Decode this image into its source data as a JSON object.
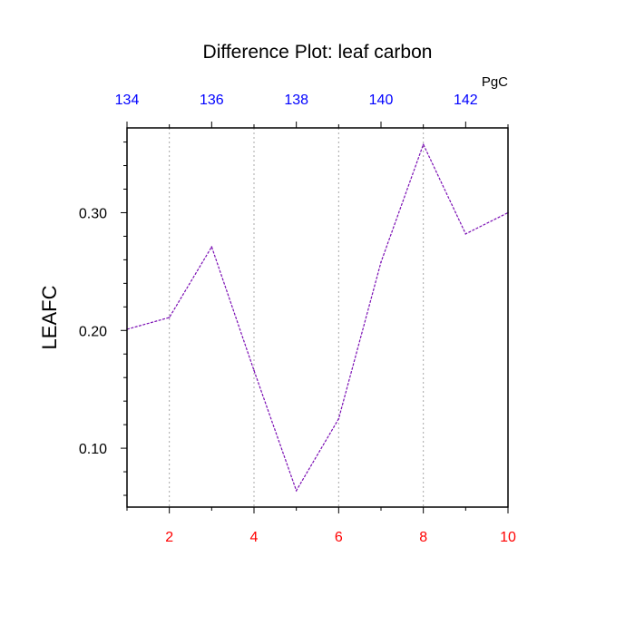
{
  "chart_data": {
    "type": "line",
    "title": "Difference Plot: leaf carbon",
    "ylabel": "LEAFC",
    "units_label": "PgC",
    "x": [
      1,
      2,
      3,
      4,
      5,
      6,
      7,
      8,
      9,
      10
    ],
    "series": [
      {
        "values": [
          0.201,
          0.211,
          0.271,
          0.166,
          0.064,
          0.125,
          0.258,
          0.358,
          0.282,
          0.3
        ],
        "color": "#7b0fb4",
        "style": "dashed"
      }
    ],
    "xlim": [
      1,
      10
    ],
    "ylim": [
      0.05,
      0.372
    ],
    "x_ticks": [
      "2",
      "4",
      "6",
      "8",
      "10"
    ],
    "x_tick_values": [
      2,
      4,
      6,
      8,
      10
    ],
    "y_ticks": [
      "0.10",
      "0.20",
      "0.30"
    ],
    "y_tick_values": [
      0.1,
      0.2,
      0.3
    ],
    "top_axis": {
      "ticks": [
        "134",
        "136",
        "138",
        "140",
        "142"
      ],
      "tick_positions_x": [
        1,
        3,
        5,
        7,
        9
      ],
      "color": "#0000ff"
    },
    "bottom_tick_color": "#ff0000",
    "vertical_grid": true,
    "grid_style": "dotted"
  }
}
